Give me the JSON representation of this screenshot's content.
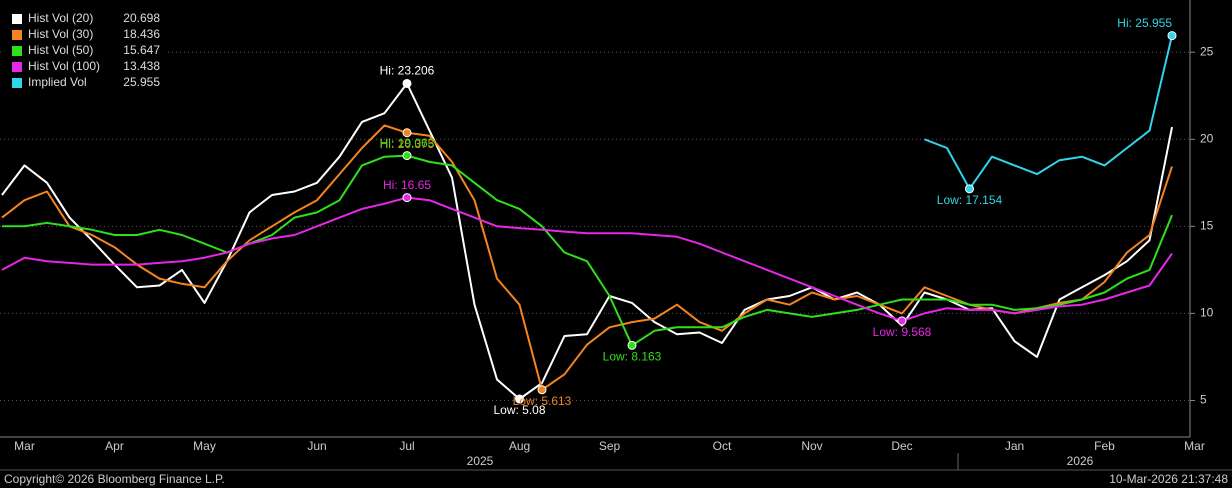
{
  "chart_data": {
    "type": "line",
    "categories": [
      null,
      "Mar",
      null,
      null,
      null,
      "Apr",
      null,
      null,
      null,
      "May",
      null,
      null,
      null,
      null,
      "Jun",
      null,
      null,
      null,
      "Jul",
      null,
      null,
      null,
      null,
      "Aug",
      null,
      null,
      null,
      "Sep",
      null,
      null,
      null,
      null,
      "Oct",
      null,
      null,
      null,
      "Nov",
      null,
      null,
      null,
      "Dec",
      null,
      null,
      null,
      null,
      "Jan",
      null,
      null,
      null,
      "Feb",
      null,
      null,
      null,
      "Mar"
    ],
    "years": [
      "2025",
      "2026"
    ],
    "ylim": [
      2.9,
      28
    ],
    "yticks": [
      5,
      10,
      15,
      20,
      25
    ],
    "grid": true,
    "legend": "top-left",
    "series": [
      {
        "name": "Hist Vol (20)",
        "last": "20.698",
        "color": "#ffffff",
        "values": [
          16.8,
          18.5,
          17.5,
          15.5,
          14.2,
          12.8,
          11.5,
          11.6,
          12.5,
          10.6,
          13,
          15.8,
          16.8,
          17,
          17.5,
          19,
          21,
          21.5,
          23.206,
          20.5,
          17.8,
          10.5,
          6.2,
          5.08,
          6,
          8.7,
          8.8,
          11,
          10.6,
          9.5,
          8.8,
          8.9,
          8.3,
          10.2,
          10.8,
          11,
          11.5,
          10.8,
          11.2,
          10.5,
          9.3,
          11.2,
          10.8,
          10.2,
          10.3,
          8.4,
          7.5,
          10.8,
          11.5,
          12.2,
          13,
          14.2,
          20.698,
          null
        ]
      },
      {
        "name": "Hist Vol (30)",
        "last": "18.436",
        "color": "#f5841f",
        "values": [
          15.5,
          16.5,
          17,
          15,
          14.5,
          13.8,
          12.8,
          12,
          11.7,
          11.5,
          13,
          14.2,
          15,
          15.8,
          16.5,
          18,
          19.5,
          20.8,
          20.375,
          20.2,
          18.7,
          16.5,
          12,
          10.5,
          5.613,
          6.5,
          8.2,
          9.2,
          9.5,
          9.7,
          10.5,
          9.5,
          9.0,
          10,
          10.8,
          10.5,
          11.2,
          10.8,
          11,
          10.5,
          10,
          11.5,
          11,
          10.5,
          10.2,
          10,
          10.3,
          10.6,
          10.8,
          11.8,
          13.5,
          14.5,
          18.436,
          null
        ]
      },
      {
        "name": "Hist Vol (50)",
        "last": "15.647",
        "color": "#2ee019",
        "values": [
          15,
          15,
          15.2,
          15,
          14.8,
          14.5,
          14.5,
          14.8,
          14.5,
          14,
          13.5,
          14,
          14.5,
          15.5,
          15.8,
          16.5,
          18.5,
          19,
          19.063,
          18.7,
          18.5,
          17.5,
          16.5,
          16,
          15,
          13.5,
          13,
          11,
          8.163,
          9,
          9.2,
          9.2,
          9.2,
          9.8,
          10.2,
          10,
          9.8,
          10,
          10.2,
          10.5,
          10.8,
          10.8,
          10.8,
          10.5,
          10.5,
          10.2,
          10.3,
          10.5,
          10.8,
          11.2,
          12,
          12.5,
          15.647,
          null
        ]
      },
      {
        "name": "Hist Vol (100)",
        "last": "13.438",
        "color": "#e627e6",
        "values": [
          12.5,
          13.2,
          13,
          12.9,
          12.8,
          12.8,
          12.8,
          12.9,
          13,
          13.2,
          13.5,
          14,
          14.3,
          14.5,
          15,
          15.5,
          16,
          16.3,
          16.65,
          16.5,
          16,
          15.5,
          15,
          14.9,
          14.8,
          14.7,
          14.6,
          14.6,
          14.6,
          14.5,
          14.4,
          14,
          13.5,
          13,
          12.5,
          12,
          11.5,
          11,
          10.5,
          10,
          9.568,
          10,
          10.3,
          10.2,
          10.2,
          10,
          10.2,
          10.4,
          10.5,
          10.8,
          11.2,
          11.6,
          13.438,
          null
        ]
      },
      {
        "name": "Implied Vol",
        "last": "25.955",
        "color": "#2fd5e8",
        "values": [
          null,
          null,
          null,
          null,
          null,
          null,
          null,
          null,
          null,
          null,
          null,
          null,
          null,
          null,
          null,
          null,
          null,
          null,
          null,
          null,
          null,
          null,
          null,
          null,
          null,
          null,
          null,
          null,
          null,
          null,
          null,
          null,
          null,
          null,
          null,
          null,
          null,
          null,
          null,
          null,
          null,
          20,
          19.5,
          17.154,
          19,
          18.5,
          18,
          18.8,
          19,
          18.5,
          19.5,
          20.5,
          25.955,
          null
        ]
      }
    ],
    "annotations": [
      {
        "series": 0,
        "point": 18,
        "label": "Hi: 23.206"
      },
      {
        "series": 0,
        "point": 23,
        "label": "Low: 5.08"
      },
      {
        "series": 1,
        "point": 18,
        "label": "Hi: 20.375"
      },
      {
        "series": 1,
        "point": 24,
        "label": "Low: 5.613"
      },
      {
        "series": 2,
        "point": 18,
        "label": "Hi: 19.063"
      },
      {
        "series": 2,
        "point": 28,
        "label": "Low: 8.163"
      },
      {
        "series": 3,
        "point": 18,
        "label": "Hi: 16.65"
      },
      {
        "series": 3,
        "point": 40,
        "label": "Low: 9.568"
      },
      {
        "series": 4,
        "point": 52,
        "label": "Hi: 25.955"
      },
      {
        "series": 4,
        "point": 43,
        "label": "Low: 17.154"
      }
    ]
  },
  "footer": {
    "copyright": "Copyright© 2026 Bloomberg Finance L.P.",
    "timestamp": "10-Mar-2026 21:37:48"
  }
}
